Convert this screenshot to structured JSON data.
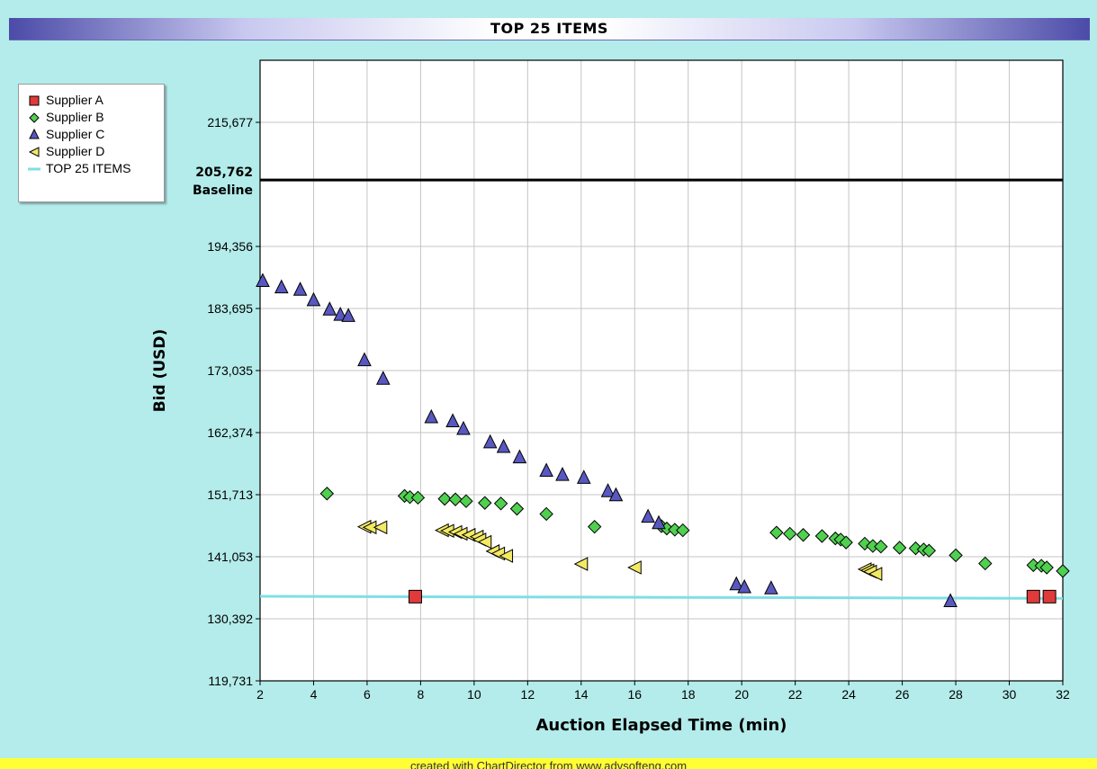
{
  "chart_data": {
    "type": "scatter",
    "title": "TOP 25 ITEMS",
    "xlabel": "Auction Elapsed Time (min)",
    "ylabel": "Bid (USD)",
    "xlim": [
      2,
      32
    ],
    "ylim": [
      119731,
      226338
    ],
    "x_ticks": [
      2,
      4,
      6,
      8,
      10,
      12,
      14,
      16,
      18,
      20,
      22,
      24,
      26,
      28,
      30,
      32
    ],
    "y_ticks": [
      119731,
      130392,
      141053,
      151713,
      162374,
      173035,
      183695,
      194356,
      215677
    ],
    "y_tick_labels": [
      "119,731",
      "130,392",
      "141,053",
      "151,713",
      "162,374",
      "173,035",
      "183,695",
      "194,356",
      "215,677"
    ],
    "grid": true,
    "legend_position": "top-left, outside plot",
    "baseline": {
      "value": 205762,
      "value_label": "205,762",
      "label": "Baseline",
      "color": "#000000"
    },
    "series": [
      {
        "name": "Supplier A",
        "marker": "square",
        "color": "#e03a3a",
        "x": [
          7.8,
          30.9,
          31.5
        ],
        "y": [
          134200,
          134200,
          134200
        ]
      },
      {
        "name": "Supplier B",
        "marker": "diamond",
        "color": "#4fd04f",
        "x": [
          4.5,
          7.4,
          7.6,
          7.9,
          8.9,
          9.3,
          9.7,
          10.4,
          11.0,
          11.6,
          12.7,
          14.5,
          17.0,
          17.2,
          17.5,
          17.8,
          21.3,
          21.8,
          22.3,
          23.0,
          23.5,
          23.7,
          23.9,
          24.6,
          24.9,
          25.2,
          25.9,
          26.5,
          26.8,
          27.0,
          28.0,
          29.1,
          30.9,
          31.2,
          31.4,
          32.0
        ],
        "y": [
          151900,
          151500,
          151300,
          151200,
          151000,
          150900,
          150600,
          150300,
          150200,
          149300,
          148400,
          146200,
          146300,
          145900,
          145700,
          145600,
          145200,
          145000,
          144800,
          144600,
          144200,
          144000,
          143500,
          143300,
          142900,
          142800,
          142600,
          142500,
          142300,
          142100,
          141300,
          139900,
          139600,
          139500,
          139200,
          138600
        ]
      },
      {
        "name": "Supplier C",
        "marker": "triangle-up",
        "color": "#5858c0",
        "x": [
          2.1,
          2.8,
          3.5,
          4.0,
          4.6,
          5.0,
          5.3,
          5.9,
          6.6,
          8.4,
          9.2,
          9.6,
          10.6,
          11.1,
          11.7,
          12.7,
          13.3,
          14.1,
          15.0,
          15.3,
          16.5,
          16.9,
          19.8,
          20.1,
          21.1,
          27.8
        ],
        "y": [
          188400,
          187300,
          186900,
          185100,
          183500,
          182600,
          182400,
          174800,
          171600,
          165000,
          164300,
          163000,
          160700,
          159900,
          158100,
          155800,
          155100,
          154600,
          152300,
          151600,
          147900,
          146800,
          136300,
          135800,
          135600,
          133400
        ]
      },
      {
        "name": "Supplier D",
        "marker": "triangle-left",
        "color": "#f2ea64",
        "x": [
          5.9,
          6.1,
          6.5,
          8.8,
          9.0,
          9.3,
          9.5,
          9.8,
          10.1,
          10.2,
          10.4,
          10.7,
          10.9,
          11.2,
          14.0,
          16.0,
          24.6,
          24.7,
          24.8,
          25.0
        ],
        "y": [
          146200,
          146100,
          146100,
          145600,
          145500,
          145300,
          145000,
          144800,
          144500,
          144000,
          143600,
          142000,
          141600,
          141200,
          139800,
          139200,
          138900,
          138700,
          138500,
          138100
        ]
      },
      {
        "name": "TOP 25 ITEMS",
        "marker": "line",
        "color": "#7fdfe6",
        "x": [
          2,
          32
        ],
        "y": [
          134250,
          133900
        ]
      }
    ]
  },
  "footer": {
    "text": "created with ChartDirector from www.advsofteng.com"
  }
}
